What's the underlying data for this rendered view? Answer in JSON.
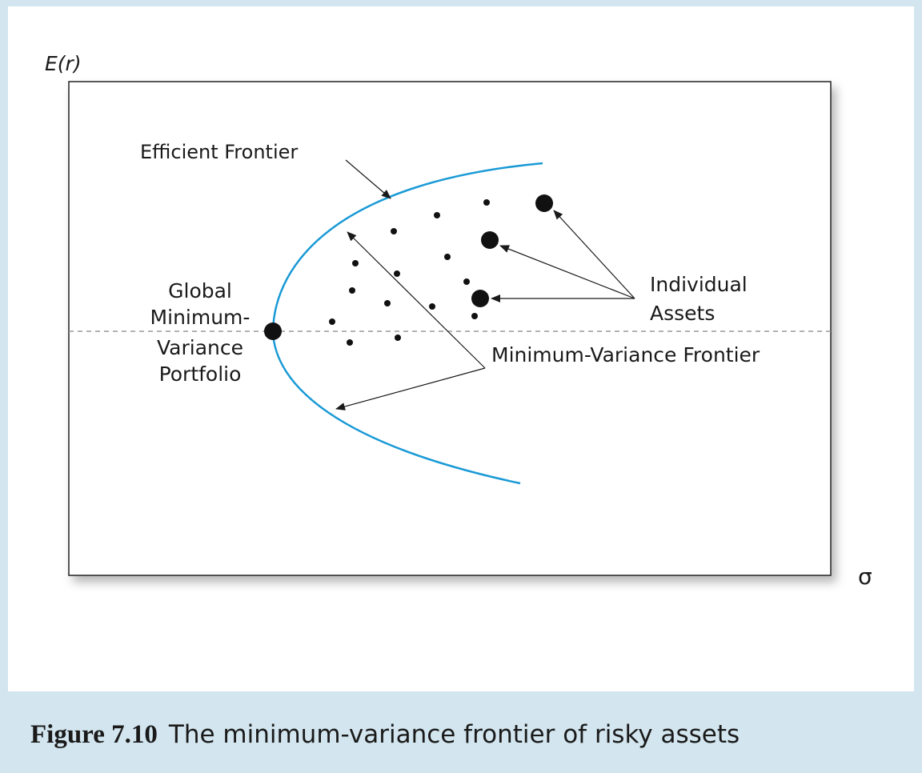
{
  "figure": {
    "axes": {
      "y_label": "E(r)",
      "x_label": "σ"
    },
    "labels": {
      "efficient_frontier": "Efficient Frontier",
      "individual_assets": [
        "Individual",
        "Assets"
      ],
      "global_min_variance": [
        "Global",
        "Minimum-",
        "Variance",
        "Portfolio"
      ],
      "min_variance_frontier": "Minimum-Variance Frontier"
    },
    "colors": {
      "frontier": "#1a9ad6",
      "dashed_line": "#999999",
      "points": "#111111",
      "frame": "#d3e6ef"
    }
  },
  "caption": {
    "number": "Figure 7.10",
    "text": "The minimum-variance frontier of risky assets"
  }
}
